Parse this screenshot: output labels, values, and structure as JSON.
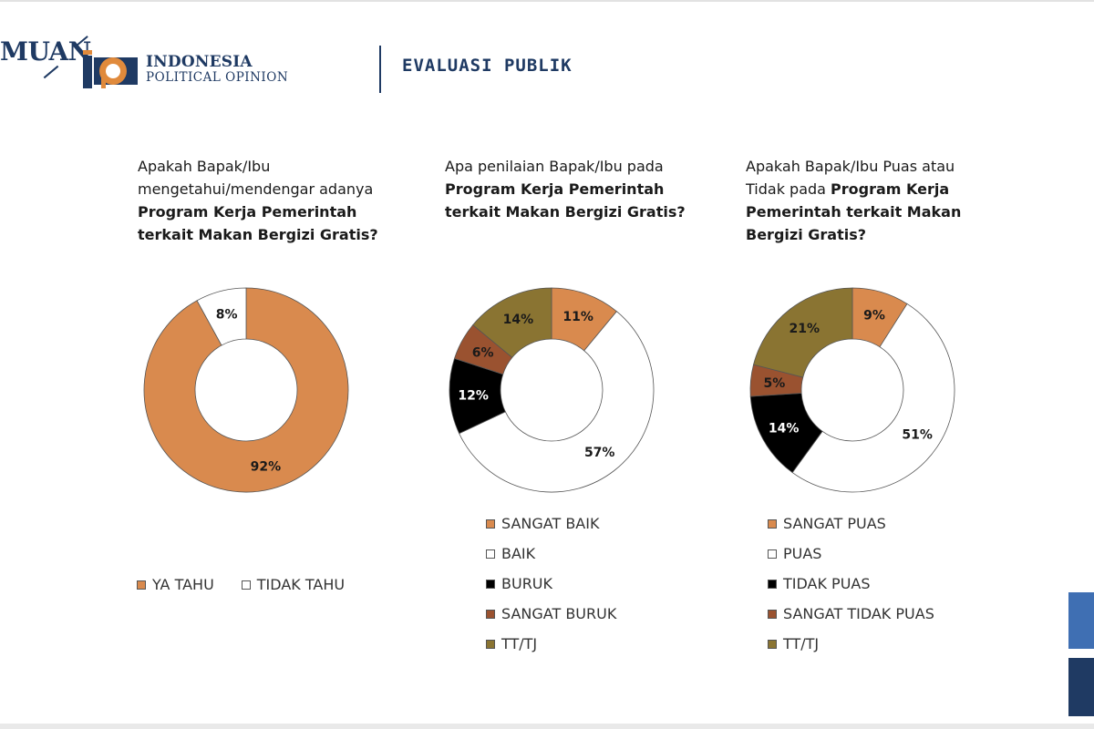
{
  "header": {
    "partial_brand": "MUAN",
    "logo_name": "INDONESIA",
    "logo_sub": "POLITICAL OPINION",
    "title": "EVALUASI PUBLIK"
  },
  "colors": {
    "brand_navy": "#1f3a63",
    "orange": "#d98a4e",
    "white": "#ffffff",
    "black": "#000000",
    "brown": "#9a5230",
    "olive": "#8a7432"
  },
  "chart_data": [
    {
      "type": "pie",
      "variant": "donut",
      "title_parts": [
        {
          "text": "Apakah Bapak/Ibu mengetahui/mendengar adanya ",
          "bold": false
        },
        {
          "text": "Program Kerja Pemerintah terkait Makan Bergizi Gratis?",
          "bold": true
        }
      ],
      "legend_position": "bottom",
      "slices": [
        {
          "label": "YA TAHU",
          "value": 92,
          "display": "92%",
          "color": "#d98a4e",
          "text_color": "#1a1a1a"
        },
        {
          "label": "TIDAK TAHU",
          "value": 8,
          "display": "8%",
          "color": "#ffffff",
          "text_color": "#1a1a1a"
        }
      ]
    },
    {
      "type": "pie",
      "variant": "donut",
      "title_parts": [
        {
          "text": "Apa penilaian Bapak/Ibu pada ",
          "bold": false
        },
        {
          "text": "Program Kerja Pemerintah terkait Makan Bergizi Gratis?",
          "bold": true
        }
      ],
      "legend_position": "bottom",
      "slices": [
        {
          "label": "SANGAT BAIK",
          "value": 11,
          "display": "11%",
          "color": "#d98a4e",
          "text_color": "#1a1a1a"
        },
        {
          "label": "BAIK",
          "value": 57,
          "display": "57%",
          "color": "#ffffff",
          "text_color": "#1a1a1a"
        },
        {
          "label": "BURUK",
          "value": 12,
          "display": "12%",
          "color": "#000000",
          "text_color": "#ffffff"
        },
        {
          "label": "SANGAT BURUK",
          "value": 6,
          "display": "6%",
          "color": "#9a5230",
          "text_color": "#1a1a1a"
        },
        {
          "label": "TT/TJ",
          "value": 14,
          "display": "14%",
          "color": "#8a7432",
          "text_color": "#1a1a1a"
        }
      ]
    },
    {
      "type": "pie",
      "variant": "donut",
      "title_parts": [
        {
          "text": "Apakah Bapak/Ibu Puas atau Tidak pada ",
          "bold": false
        },
        {
          "text": "Program Kerja Pemerintah terkait Makan Bergizi Gratis?",
          "bold": true
        }
      ],
      "legend_position": "bottom",
      "slices": [
        {
          "label": "SANGAT PUAS",
          "value": 9,
          "display": "9%",
          "color": "#d98a4e",
          "text_color": "#1a1a1a"
        },
        {
          "label": "PUAS",
          "value": 51,
          "display": "51%",
          "color": "#ffffff",
          "text_color": "#1a1a1a"
        },
        {
          "label": "TIDAK PUAS",
          "value": 14,
          "display": "14%",
          "color": "#000000",
          "text_color": "#ffffff"
        },
        {
          "label": "SANGAT TIDAK PUAS",
          "value": 5,
          "display": "5%",
          "color": "#9a5230",
          "text_color": "#1a1a1a"
        },
        {
          "label": "TT/TJ",
          "value": 21,
          "display": "21%",
          "color": "#8a7432",
          "text_color": "#1a1a1a"
        }
      ]
    }
  ]
}
